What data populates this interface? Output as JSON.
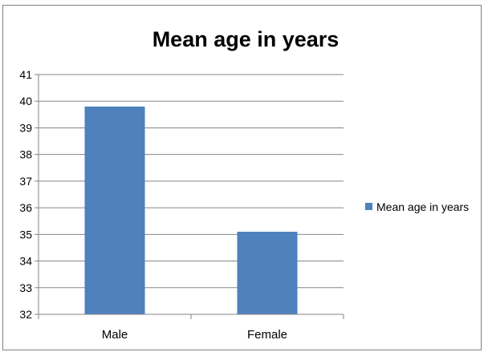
{
  "chart_data": {
    "type": "bar",
    "title": "Mean age in years",
    "categories": [
      "Male",
      "Female"
    ],
    "series": [
      {
        "name": "Mean age in years",
        "values": [
          39.8,
          35.1
        ],
        "color": "#4f81bd"
      }
    ],
    "ylim": [
      32,
      41
    ],
    "yticks": [
      32,
      33,
      34,
      35,
      36,
      37,
      38,
      39,
      40,
      41
    ],
    "grid": true,
    "legend": "right",
    "xlabel": "",
    "ylabel": ""
  }
}
